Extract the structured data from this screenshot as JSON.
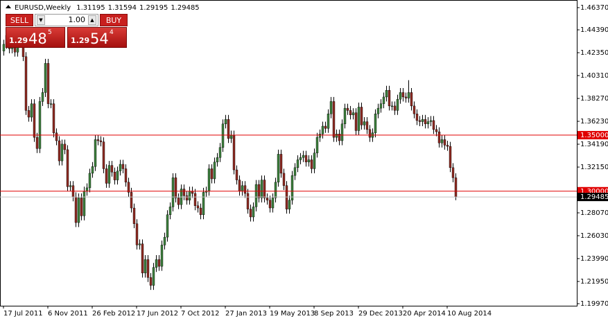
{
  "chart_data": {
    "type": "candlestick",
    "symbol": "EURUSD,Weekly",
    "categories": [
      "17 Jul 2011",
      null,
      null,
      null,
      null,
      null,
      null,
      null,
      null,
      null,
      null,
      null,
      null,
      null,
      null,
      null,
      "6 Nov 2011",
      null,
      null,
      null,
      null,
      null,
      null,
      null,
      null,
      null,
      null,
      null,
      null,
      null,
      null,
      null,
      "26 Feb 2012",
      null,
      null,
      null,
      null,
      null,
      null,
      null,
      null,
      null,
      null,
      null,
      null,
      null,
      null,
      null,
      "17 Jun 2012",
      null,
      null,
      null,
      null,
      null,
      null,
      null,
      null,
      null,
      null,
      null,
      null,
      null,
      null,
      null,
      "7 Oct 2012",
      null,
      null,
      null,
      null,
      null,
      null,
      null,
      null,
      null,
      null,
      null,
      null,
      null,
      null,
      null,
      "27 Jan 2013",
      null,
      null,
      null,
      null,
      null,
      null,
      null,
      null,
      null,
      null,
      null,
      null,
      null,
      null,
      null,
      "19 May 2013",
      null,
      null,
      null,
      null,
      null,
      null,
      null,
      null,
      null,
      null,
      null,
      null,
      null,
      null,
      null,
      "8 Sep 2013",
      null,
      null,
      null,
      null,
      null,
      null,
      null,
      null,
      null,
      null,
      null,
      null,
      null,
      null,
      null,
      "29 Dec 2013",
      null,
      null,
      null,
      null,
      null,
      null,
      null,
      null,
      null,
      null,
      null,
      null,
      null,
      null,
      null,
      "20 Apr 2014",
      null,
      null,
      null,
      null,
      null,
      null,
      null,
      null,
      null,
      null,
      null,
      null,
      null,
      null,
      null,
      "10 Aug 2014",
      null,
      null,
      null
    ],
    "open": [
      1.425,
      1.431,
      1.439,
      1.427,
      1.437,
      1.424,
      1.44,
      1.438,
      1.42,
      1.372,
      1.366,
      1.378,
      1.348,
      1.338,
      1.38,
      1.388,
      1.414,
      1.378,
      1.378,
      1.352,
      1.345,
      1.327,
      1.342,
      1.337,
      1.304,
      1.305,
      1.295,
      1.272,
      1.294,
      1.278,
      1.3,
      1.303,
      1.316,
      1.322,
      1.346,
      1.345,
      1.344,
      1.32,
      1.307,
      1.323,
      1.317,
      1.31,
      1.318,
      1.324,
      1.32,
      1.308,
      1.299,
      1.285,
      1.271,
      1.252,
      1.253,
      1.227,
      1.239,
      1.223,
      1.216,
      1.232,
      1.239,
      1.233,
      1.252,
      1.259,
      1.279,
      1.286,
      1.312,
      1.294,
      1.288,
      1.302,
      1.296,
      1.292,
      1.3,
      1.298,
      1.287,
      1.285,
      1.279,
      1.299,
      1.3,
      1.32,
      1.311,
      1.326,
      1.33,
      1.339,
      1.36,
      1.364,
      1.347,
      1.35,
      1.319,
      1.31,
      1.3,
      1.305,
      1.298,
      1.284,
      1.277,
      1.286,
      1.306,
      1.294,
      1.31,
      1.294,
      1.292,
      1.285,
      1.294,
      1.308,
      1.333,
      1.316,
      1.305,
      1.284,
      1.292,
      1.314,
      1.321,
      1.328,
      1.33,
      1.332,
      1.326,
      1.328,
      1.32,
      1.334,
      1.348,
      1.351,
      1.358,
      1.356,
      1.369,
      1.38,
      1.348,
      1.351,
      1.345,
      1.36,
      1.374,
      1.372,
      1.368,
      1.37,
      1.354,
      1.375,
      1.359,
      1.362,
      1.355,
      1.348,
      1.352,
      1.369,
      1.374,
      1.378,
      1.384,
      1.39,
      1.376,
      1.376,
      1.372,
      1.382,
      1.388,
      1.384,
      1.383,
      1.388,
      1.376,
      1.369,
      1.363,
      1.362,
      1.364,
      1.36,
      1.362,
      1.363,
      1.355,
      1.353,
      1.343,
      1.346,
      1.341,
      1.34,
      1.321,
      1.31195
    ],
    "high": [
      1.435,
      1.443,
      1.443,
      1.441,
      1.441,
      1.444,
      1.444,
      1.442,
      1.424,
      1.376,
      1.382,
      1.382,
      1.352,
      1.384,
      1.392,
      1.418,
      1.418,
      1.382,
      1.382,
      1.356,
      1.349,
      1.346,
      1.346,
      1.341,
      1.309,
      1.309,
      1.299,
      1.298,
      1.298,
      1.304,
      1.307,
      1.32,
      1.326,
      1.35,
      1.35,
      1.349,
      1.348,
      1.324,
      1.327,
      1.327,
      1.321,
      1.322,
      1.328,
      1.328,
      1.324,
      1.312,
      1.303,
      1.289,
      1.275,
      1.257,
      1.257,
      1.243,
      1.243,
      1.227,
      1.236,
      1.243,
      1.243,
      1.256,
      1.263,
      1.283,
      1.29,
      1.316,
      1.316,
      1.298,
      1.306,
      1.306,
      1.3,
      1.304,
      1.304,
      1.302,
      1.291,
      1.289,
      1.303,
      1.304,
      1.324,
      1.324,
      1.33,
      1.334,
      1.343,
      1.364,
      1.368,
      1.368,
      1.354,
      1.354,
      1.323,
      1.314,
      1.309,
      1.309,
      1.302,
      1.288,
      1.29,
      1.31,
      1.31,
      1.314,
      1.314,
      1.298,
      1.296,
      1.298,
      1.312,
      1.337,
      1.337,
      1.32,
      1.309,
      1.296,
      1.318,
      1.325,
      1.332,
      1.334,
      1.336,
      1.336,
      1.332,
      1.332,
      1.338,
      1.352,
      1.355,
      1.362,
      1.362,
      1.373,
      1.384,
      1.384,
      1.355,
      1.355,
      1.364,
      1.378,
      1.378,
      1.376,
      1.374,
      1.374,
      1.379,
      1.379,
      1.366,
      1.366,
      1.359,
      1.356,
      1.373,
      1.378,
      1.382,
      1.388,
      1.394,
      1.394,
      1.38,
      1.38,
      1.386,
      1.392,
      1.392,
      1.388,
      1.399,
      1.392,
      1.38,
      1.373,
      1.367,
      1.368,
      1.368,
      1.366,
      1.367,
      1.367,
      1.359,
      1.357,
      1.35,
      1.35,
      1.345,
      1.344,
      1.325,
      1.31594
    ],
    "low": [
      1.421,
      1.427,
      1.423,
      1.423,
      1.42,
      1.42,
      1.434,
      1.416,
      1.368,
      1.362,
      1.362,
      1.344,
      1.334,
      1.334,
      1.376,
      1.384,
      1.374,
      1.374,
      1.348,
      1.341,
      1.323,
      1.323,
      1.333,
      1.3,
      1.3,
      1.291,
      1.268,
      1.268,
      1.274,
      1.274,
      1.296,
      1.299,
      1.312,
      1.318,
      1.341,
      1.34,
      1.316,
      1.303,
      1.303,
      1.313,
      1.306,
      1.306,
      1.314,
      1.316,
      1.304,
      1.295,
      1.281,
      1.267,
      1.248,
      1.248,
      1.223,
      1.223,
      1.219,
      1.212,
      1.212,
      1.228,
      1.229,
      1.229,
      1.248,
      1.255,
      1.275,
      1.282,
      1.29,
      1.284,
      1.284,
      1.292,
      1.288,
      1.288,
      1.294,
      1.283,
      1.281,
      1.275,
      1.275,
      1.295,
      1.296,
      1.307,
      1.307,
      1.322,
      1.326,
      1.335,
      1.356,
      1.343,
      1.343,
      1.315,
      1.306,
      1.296,
      1.296,
      1.294,
      1.28,
      1.273,
      1.273,
      1.282,
      1.29,
      1.29,
      1.29,
      1.288,
      1.281,
      1.281,
      1.29,
      1.304,
      1.312,
      1.301,
      1.28,
      1.28,
      1.288,
      1.31,
      1.317,
      1.324,
      1.326,
      1.322,
      1.322,
      1.316,
      1.316,
      1.33,
      1.344,
      1.347,
      1.352,
      1.352,
      1.365,
      1.344,
      1.344,
      1.341,
      1.341,
      1.356,
      1.368,
      1.364,
      1.364,
      1.35,
      1.35,
      1.355,
      1.355,
      1.351,
      1.344,
      1.344,
      1.348,
      1.365,
      1.37,
      1.374,
      1.38,
      1.372,
      1.372,
      1.368,
      1.368,
      1.378,
      1.38,
      1.379,
      1.379,
      1.372,
      1.365,
      1.359,
      1.358,
      1.358,
      1.356,
      1.356,
      1.358,
      1.351,
      1.349,
      1.339,
      1.339,
      1.337,
      1.336,
      1.317,
      1.308,
      1.29195
    ],
    "close": [
      1.431,
      1.439,
      1.427,
      1.437,
      1.424,
      1.44,
      1.438,
      1.42,
      1.372,
      1.366,
      1.378,
      1.348,
      1.338,
      1.38,
      1.388,
      1.414,
      1.378,
      1.378,
      1.352,
      1.345,
      1.327,
      1.342,
      1.337,
      1.304,
      1.305,
      1.295,
      1.272,
      1.294,
      1.278,
      1.3,
      1.303,
      1.316,
      1.322,
      1.346,
      1.345,
      1.344,
      1.32,
      1.307,
      1.323,
      1.317,
      1.31,
      1.318,
      1.324,
      1.32,
      1.308,
      1.299,
      1.285,
      1.271,
      1.252,
      1.253,
      1.227,
      1.239,
      1.223,
      1.216,
      1.232,
      1.239,
      1.233,
      1.252,
      1.259,
      1.279,
      1.286,
      1.312,
      1.294,
      1.288,
      1.302,
      1.296,
      1.292,
      1.3,
      1.298,
      1.287,
      1.285,
      1.279,
      1.299,
      1.3,
      1.32,
      1.311,
      1.326,
      1.33,
      1.339,
      1.36,
      1.364,
      1.347,
      1.35,
      1.319,
      1.31,
      1.3,
      1.305,
      1.298,
      1.284,
      1.277,
      1.286,
      1.306,
      1.294,
      1.31,
      1.294,
      1.292,
      1.285,
      1.294,
      1.308,
      1.333,
      1.316,
      1.305,
      1.284,
      1.292,
      1.314,
      1.321,
      1.328,
      1.33,
      1.332,
      1.326,
      1.328,
      1.32,
      1.334,
      1.348,
      1.351,
      1.358,
      1.356,
      1.369,
      1.38,
      1.348,
      1.351,
      1.345,
      1.36,
      1.374,
      1.372,
      1.368,
      1.37,
      1.354,
      1.375,
      1.359,
      1.362,
      1.355,
      1.348,
      1.352,
      1.369,
      1.374,
      1.378,
      1.384,
      1.39,
      1.376,
      1.376,
      1.372,
      1.382,
      1.388,
      1.384,
      1.383,
      1.388,
      1.376,
      1.369,
      1.363,
      1.362,
      1.364,
      1.36,
      1.362,
      1.363,
      1.355,
      1.353,
      1.343,
      1.346,
      1.341,
      1.34,
      1.321,
      1.312,
      1.29485
    ],
    "up_color": "#3c7f3c",
    "down_color": "#8e2a22",
    "wick_color": "#000000",
    "ylim": [
      1.1997,
      1.4637
    ],
    "yticks": [
      {
        "value": 1.4637,
        "label": "1.46370"
      },
      {
        "value": 1.4439,
        "label": "1.44390"
      },
      {
        "value": 1.4235,
        "label": "1.42350"
      },
      {
        "value": 1.4031,
        "label": "1.40310"
      },
      {
        "value": 1.3827,
        "label": "1.38270"
      },
      {
        "value": 1.3623,
        "label": "1.36230"
      },
      {
        "value": 1.3419,
        "label": "1.34190"
      },
      {
        "value": 1.3215,
        "label": "1.32150"
      },
      {
        "value": 1.2807,
        "label": "1.28070"
      },
      {
        "value": 1.2603,
        "label": "1.26030"
      },
      {
        "value": 1.2399,
        "label": "1.23990"
      },
      {
        "value": 1.2195,
        "label": "1.21950"
      },
      {
        "value": 1.1997,
        "label": "1.19970"
      }
    ],
    "hlines": [
      {
        "value": 1.35,
        "label": "1.35000"
      },
      {
        "value": 1.3,
        "label": "1.30000"
      }
    ],
    "hline_color": "#e00000",
    "price_line_color": "#c0c0c0",
    "grid": false
  },
  "trade_panel": {
    "sell": "SELL",
    "buy": "BUY",
    "lot": "1.00",
    "sell_price": {
      "big": "1.29",
      "pips": "48",
      "point": "5"
    },
    "buy_price": {
      "big": "1.29",
      "pips": "54",
      "point": "4"
    }
  }
}
